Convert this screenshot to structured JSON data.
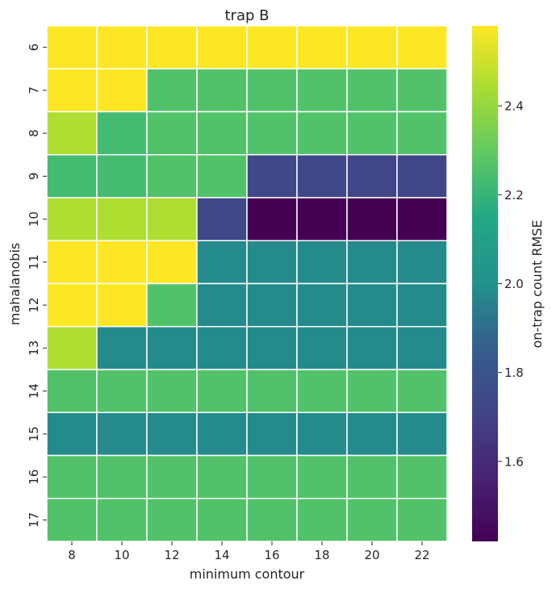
{
  "chart_data": {
    "type": "heatmap",
    "title": "trap B",
    "xlabel": "minimum contour",
    "ylabel": "mahalanobis",
    "colorbar_label": "on-trap count RMSE",
    "colormap": "viridis",
    "color_range": [
      1.42,
      2.58
    ],
    "colorbar_ticks": [
      1.6,
      1.8,
      2.0,
      2.2,
      2.4
    ],
    "colorbar_tick_labels": [
      "1.6",
      "1.8",
      "2.0",
      "2.2",
      "2.4"
    ],
    "cell_borders": "#ffffff",
    "x": [
      8,
      10,
      12,
      14,
      16,
      18,
      20,
      22
    ],
    "y": [
      6,
      7,
      8,
      9,
      10,
      11,
      12,
      13,
      14,
      15,
      16,
      17
    ],
    "x_tick_labels": [
      "8",
      "10",
      "12",
      "14",
      "16",
      "18",
      "20",
      "22"
    ],
    "y_tick_labels": [
      "6",
      "7",
      "8",
      "9",
      "10",
      "11",
      "12",
      "13",
      "14",
      "15",
      "16",
      "17"
    ],
    "values": [
      [
        2.58,
        2.58,
        2.58,
        2.58,
        2.58,
        2.58,
        2.58,
        2.58
      ],
      [
        2.58,
        2.58,
        2.26,
        2.26,
        2.26,
        2.26,
        2.26,
        2.26
      ],
      [
        2.45,
        2.23,
        2.26,
        2.26,
        2.26,
        2.26,
        2.26,
        2.26
      ],
      [
        2.23,
        2.23,
        2.26,
        2.26,
        1.73,
        1.73,
        1.72,
        1.72
      ],
      [
        2.45,
        2.45,
        2.45,
        1.73,
        1.42,
        1.42,
        1.42,
        1.42
      ],
      [
        2.58,
        2.58,
        2.58,
        1.98,
        1.98,
        1.98,
        1.98,
        1.98
      ],
      [
        2.58,
        2.58,
        2.26,
        1.98,
        1.98,
        1.98,
        1.98,
        1.98
      ],
      [
        2.45,
        1.98,
        1.98,
        1.98,
        1.98,
        1.98,
        1.98,
        1.98
      ],
      [
        2.26,
        2.26,
        2.26,
        2.26,
        2.26,
        2.26,
        2.26,
        2.26
      ],
      [
        1.98,
        1.98,
        1.98,
        1.98,
        1.98,
        1.98,
        1.98,
        1.98
      ],
      [
        2.26,
        2.26,
        2.26,
        2.26,
        2.26,
        2.26,
        2.26,
        2.26
      ],
      [
        2.26,
        2.26,
        2.26,
        2.26,
        2.26,
        2.26,
        2.26,
        2.26
      ]
    ]
  }
}
